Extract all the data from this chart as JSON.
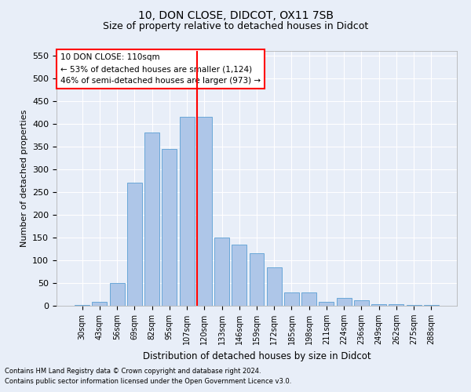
{
  "title_line1": "10, DON CLOSE, DIDCOT, OX11 7SB",
  "title_line2": "Size of property relative to detached houses in Didcot",
  "xlabel": "Distribution of detached houses by size in Didcot",
  "ylabel": "Number of detached properties",
  "categories": [
    "30sqm",
    "43sqm",
    "56sqm",
    "69sqm",
    "82sqm",
    "95sqm",
    "107sqm",
    "120sqm",
    "133sqm",
    "146sqm",
    "159sqm",
    "172sqm",
    "185sqm",
    "198sqm",
    "211sqm",
    "224sqm",
    "236sqm",
    "249sqm",
    "262sqm",
    "275sqm",
    "288sqm"
  ],
  "values": [
    2,
    8,
    50,
    270,
    380,
    345,
    415,
    415,
    150,
    135,
    115,
    85,
    30,
    30,
    8,
    18,
    12,
    4,
    4,
    2,
    1
  ],
  "bar_color": "#aec6e8",
  "bar_edge_color": "#5a9fd4",
  "background_color": "#e8eef8",
  "grid_color": "#ffffff",
  "vline_x_index": 7,
  "vline_color": "red",
  "annotation_box_text": "10 DON CLOSE: 110sqm\n← 53% of detached houses are smaller (1,124)\n46% of semi-detached houses are larger (973) →",
  "annotation_box_color": "red",
  "annotation_text_fontsize": 7.5,
  "ylim": [
    0,
    560
  ],
  "yticks": [
    0,
    50,
    100,
    150,
    200,
    250,
    300,
    350,
    400,
    450,
    500,
    550
  ],
  "footnote1": "Contains HM Land Registry data © Crown copyright and database right 2024.",
  "footnote2": "Contains public sector information licensed under the Open Government Licence v3.0.",
  "title_fontsize": 10,
  "subtitle_fontsize": 9
}
